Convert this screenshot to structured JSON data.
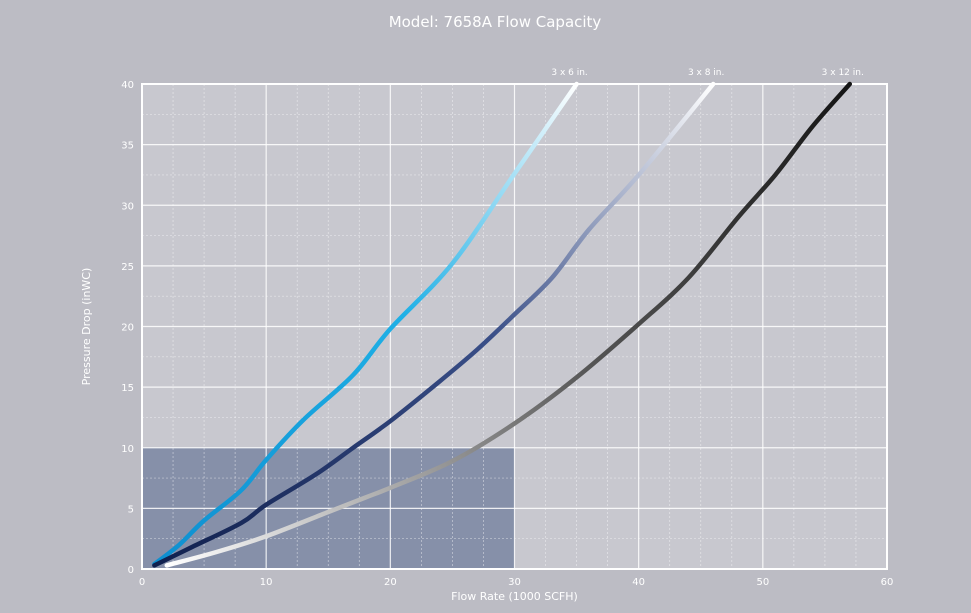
{
  "chart_data": {
    "type": "line",
    "title": "Model: 7658A Flow Capacity",
    "xlabel": "Flow Rate (1000 SCFH)",
    "ylabel": "Pressure Drop (inWC)",
    "xlim": [
      0,
      60
    ],
    "ylim": [
      0,
      40
    ],
    "x_ticks": [
      "0",
      "10",
      "20",
      "30",
      "40",
      "50",
      "60"
    ],
    "y_ticks": [
      "0",
      "5",
      "10",
      "15",
      "20",
      "25",
      "30",
      "35",
      "40"
    ],
    "grid": true,
    "highlight_region": {
      "x": [
        0,
        30
      ],
      "y": [
        0,
        10
      ]
    },
    "series": [
      {
        "name": "3 x 6 in.",
        "color_start": "#0e8fd0",
        "color_mid": "#1fb0e6",
        "color_end": "#ffffff",
        "points": [
          [
            1,
            0.4
          ],
          [
            3,
            2
          ],
          [
            5,
            4
          ],
          [
            8,
            6.5
          ],
          [
            10,
            9
          ],
          [
            13,
            12.3
          ],
          [
            17,
            16
          ],
          [
            20,
            19.8
          ],
          [
            25,
            25.2
          ],
          [
            30,
            32.6
          ],
          [
            35,
            40
          ]
        ]
      },
      {
        "name": "3 x 8 in.",
        "color_start": "#10204e",
        "color_mid": "#3a4f88",
        "color_end": "#ffffff",
        "points": [
          [
            1,
            0.3
          ],
          [
            4,
            1.8
          ],
          [
            8,
            3.8
          ],
          [
            10,
            5.3
          ],
          [
            14,
            7.8
          ],
          [
            17,
            10
          ],
          [
            20,
            12.2
          ],
          [
            24,
            15.5
          ],
          [
            27,
            18.1
          ],
          [
            30,
            21
          ],
          [
            33,
            24
          ],
          [
            36,
            28
          ],
          [
            40,
            32.5
          ],
          [
            46,
            40
          ]
        ]
      },
      {
        "name": "3 x 12 in.",
        "color_start": "#ffffff",
        "color_mid": "#555555",
        "color_end": "#151515",
        "points": [
          [
            2,
            0.3
          ],
          [
            6,
            1.4
          ],
          [
            10,
            2.7
          ],
          [
            15,
            4.7
          ],
          [
            18,
            5.9
          ],
          [
            20,
            6.7
          ],
          [
            25,
            8.9
          ],
          [
            30,
            12
          ],
          [
            35,
            15.8
          ],
          [
            40,
            20.2
          ],
          [
            44,
            24
          ],
          [
            48,
            29
          ],
          [
            51,
            32.5
          ],
          [
            54,
            36.5
          ],
          [
            57,
            40
          ]
        ]
      }
    ]
  }
}
